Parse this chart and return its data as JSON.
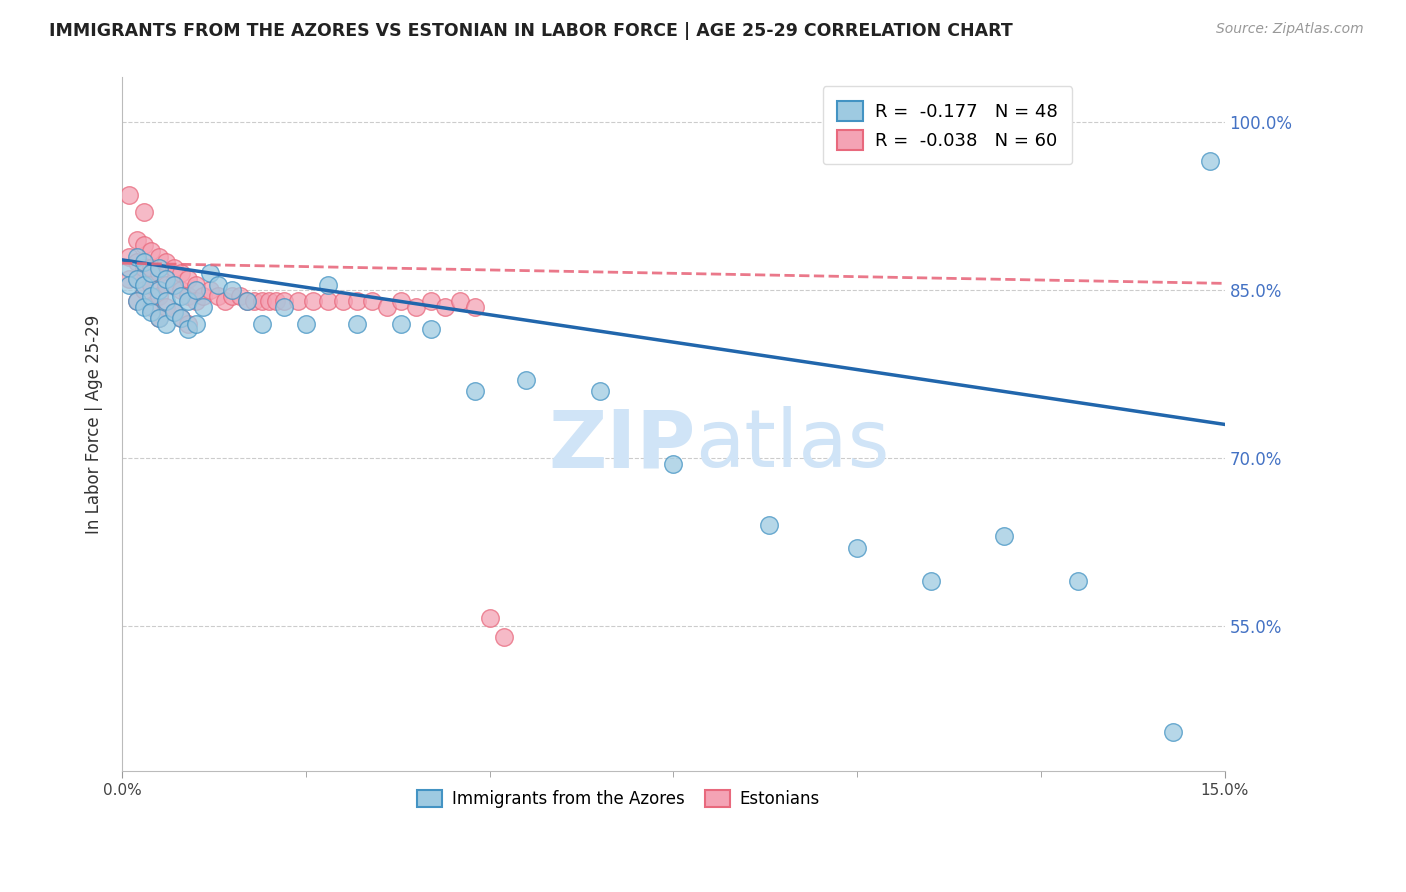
{
  "title": "IMMIGRANTS FROM THE AZORES VS ESTONIAN IN LABOR FORCE | AGE 25-29 CORRELATION CHART",
  "source_text": "Source: ZipAtlas.com",
  "ylabel": "In Labor Force | Age 25-29",
  "xlim": [
    0.0,
    0.15
  ],
  "ylim": [
    0.42,
    1.04
  ],
  "yticks": [
    0.55,
    0.7,
    0.85,
    1.0
  ],
  "yticklabels": [
    "55.0%",
    "70.0%",
    "85.0%",
    "100.0%"
  ],
  "blue_R": "-0.177",
  "blue_N": "48",
  "pink_R": "-0.038",
  "pink_N": "60",
  "blue_color": "#9ecae1",
  "pink_color": "#f4a3b5",
  "blue_edge_color": "#4393c3",
  "pink_edge_color": "#e8697d",
  "blue_line_color": "#2166ac",
  "pink_line_color": "#e8697d",
  "watermark_color": "#d0e4f7",
  "grid_color": "#cccccc",
  "blue_scatter_x": [
    0.001,
    0.001,
    0.002,
    0.002,
    0.002,
    0.003,
    0.003,
    0.003,
    0.004,
    0.004,
    0.004,
    0.005,
    0.005,
    0.005,
    0.006,
    0.006,
    0.006,
    0.007,
    0.007,
    0.008,
    0.008,
    0.009,
    0.009,
    0.01,
    0.01,
    0.011,
    0.012,
    0.013,
    0.015,
    0.017,
    0.019,
    0.022,
    0.025,
    0.028,
    0.032,
    0.038,
    0.042,
    0.048,
    0.055,
    0.065,
    0.075,
    0.088,
    0.1,
    0.11,
    0.12,
    0.13,
    0.143,
    0.148
  ],
  "blue_scatter_y": [
    0.87,
    0.855,
    0.88,
    0.86,
    0.84,
    0.875,
    0.855,
    0.835,
    0.865,
    0.845,
    0.83,
    0.87,
    0.85,
    0.825,
    0.86,
    0.84,
    0.82,
    0.855,
    0.83,
    0.845,
    0.825,
    0.84,
    0.815,
    0.85,
    0.82,
    0.835,
    0.865,
    0.855,
    0.85,
    0.84,
    0.82,
    0.835,
    0.82,
    0.855,
    0.82,
    0.82,
    0.815,
    0.76,
    0.77,
    0.76,
    0.695,
    0.64,
    0.62,
    0.59,
    0.63,
    0.59,
    0.455,
    0.965
  ],
  "pink_scatter_x": [
    0.001,
    0.001,
    0.001,
    0.002,
    0.002,
    0.002,
    0.002,
    0.003,
    0.003,
    0.003,
    0.003,
    0.004,
    0.004,
    0.004,
    0.004,
    0.005,
    0.005,
    0.005,
    0.005,
    0.006,
    0.006,
    0.006,
    0.007,
    0.007,
    0.007,
    0.008,
    0.008,
    0.008,
    0.009,
    0.009,
    0.009,
    0.01,
    0.01,
    0.011,
    0.012,
    0.013,
    0.014,
    0.015,
    0.016,
    0.017,
    0.018,
    0.019,
    0.02,
    0.021,
    0.022,
    0.024,
    0.026,
    0.028,
    0.03,
    0.032,
    0.034,
    0.036,
    0.038,
    0.04,
    0.042,
    0.044,
    0.046,
    0.048,
    0.05,
    0.052
  ],
  "pink_scatter_y": [
    0.88,
    0.86,
    0.935,
    0.895,
    0.875,
    0.86,
    0.84,
    0.92,
    0.89,
    0.87,
    0.85,
    0.885,
    0.87,
    0.855,
    0.835,
    0.88,
    0.865,
    0.845,
    0.825,
    0.875,
    0.855,
    0.835,
    0.87,
    0.855,
    0.83,
    0.865,
    0.85,
    0.825,
    0.86,
    0.845,
    0.82,
    0.855,
    0.84,
    0.845,
    0.85,
    0.845,
    0.84,
    0.845,
    0.845,
    0.84,
    0.84,
    0.84,
    0.84,
    0.84,
    0.84,
    0.84,
    0.84,
    0.84,
    0.84,
    0.84,
    0.84,
    0.835,
    0.84,
    0.835,
    0.84,
    0.835,
    0.84,
    0.835,
    0.557,
    0.54
  ],
  "blue_trendline_x": [
    0.0,
    0.15
  ],
  "blue_trendline_y": [
    0.877,
    0.73
  ],
  "pink_trendline_x": [
    0.0,
    0.15
  ],
  "pink_trendline_y": [
    0.874,
    0.856
  ]
}
